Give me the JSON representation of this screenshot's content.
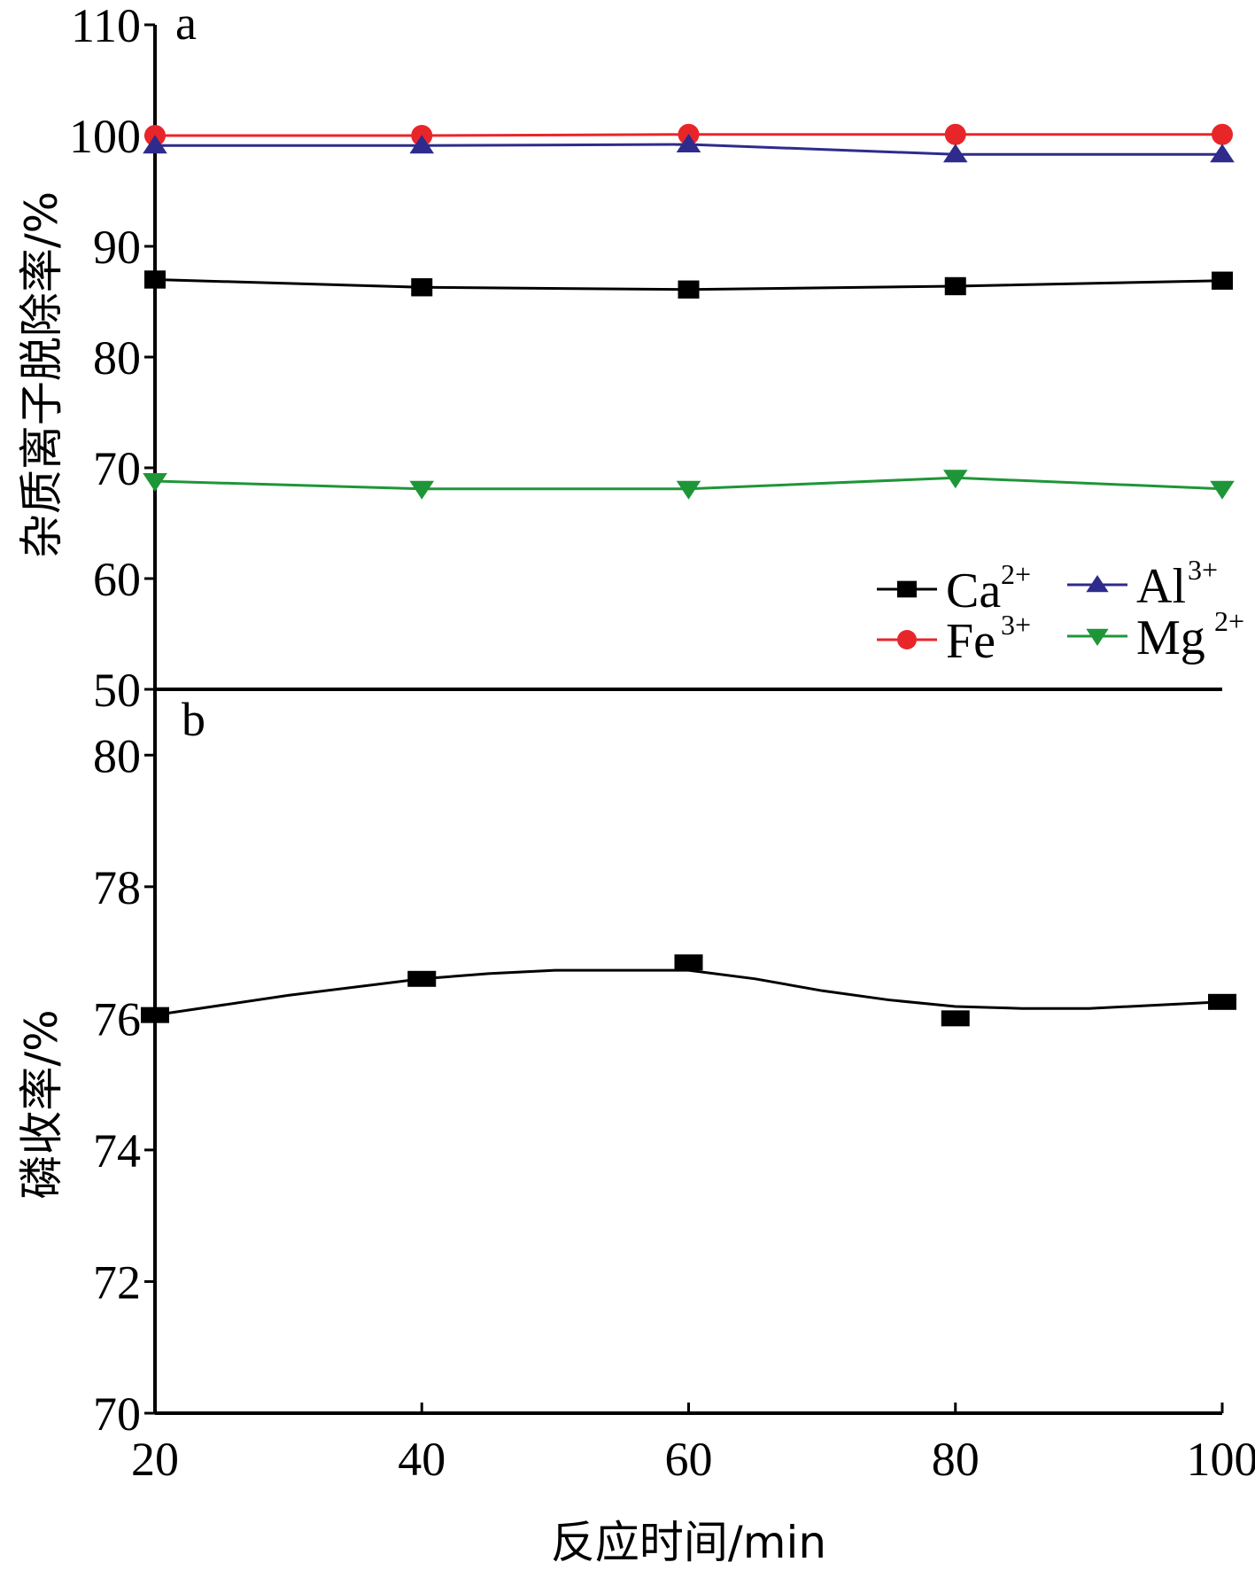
{
  "chart_data": [
    {
      "panel_label": "a",
      "type": "line",
      "ylabel": "杂质离子脱除率/%",
      "xlabel": "反应时间/min",
      "x": [
        20,
        40,
        60,
        80,
        100
      ],
      "ylim": [
        50,
        110
      ],
      "yticks": [
        50,
        60,
        70,
        80,
        90,
        100,
        110
      ],
      "grid": false,
      "legend_position": "bottom-right",
      "series": [
        {
          "name": "Ca",
          "superscript": "2+",
          "color": "#000000",
          "marker": "square",
          "values": [
            87.0,
            86.3,
            86.1,
            86.4,
            86.9
          ]
        },
        {
          "name": "Fe",
          "superscript": "3+",
          "color": "#e8262a",
          "marker": "circle",
          "values": [
            100.0,
            100.0,
            100.1,
            100.1,
            100.1
          ]
        },
        {
          "name": "Al",
          "superscript": "3+",
          "color": "#2e2b8c",
          "marker": "triangle-up",
          "values": [
            99.1,
            99.1,
            99.2,
            98.3,
            98.3
          ]
        },
        {
          "name": "Mg",
          "superscript": "2+",
          "color": "#1e9638",
          "marker": "triangle-down",
          "values": [
            68.8,
            68.1,
            68.1,
            69.1,
            68.1
          ]
        }
      ]
    },
    {
      "panel_label": "b",
      "type": "line",
      "ylabel": "磷收率/%",
      "xlabel": "反应时间/min",
      "x": [
        20,
        40,
        60,
        80,
        100
      ],
      "ylim": [
        70,
        81
      ],
      "yticks": [
        70,
        72,
        74,
        76,
        78,
        80
      ],
      "xticks": [
        20,
        40,
        60,
        80,
        100
      ],
      "grid": false,
      "series": [
        {
          "color": "#000000",
          "marker": "square",
          "values": [
            76.05,
            76.6,
            76.85,
            76.0,
            76.25
          ]
        }
      ],
      "smoothed_curve": [
        [
          20,
          76.05
        ],
        [
          30,
          76.35
        ],
        [
          40,
          76.6
        ],
        [
          45,
          76.68
        ],
        [
          50,
          76.73
        ],
        [
          55,
          76.73
        ],
        [
          60,
          76.73
        ],
        [
          65,
          76.6
        ],
        [
          70,
          76.42
        ],
        [
          75,
          76.28
        ],
        [
          80,
          76.18
        ],
        [
          85,
          76.15
        ],
        [
          90,
          76.15
        ],
        [
          95,
          76.2
        ],
        [
          100,
          76.25
        ]
      ]
    }
  ]
}
